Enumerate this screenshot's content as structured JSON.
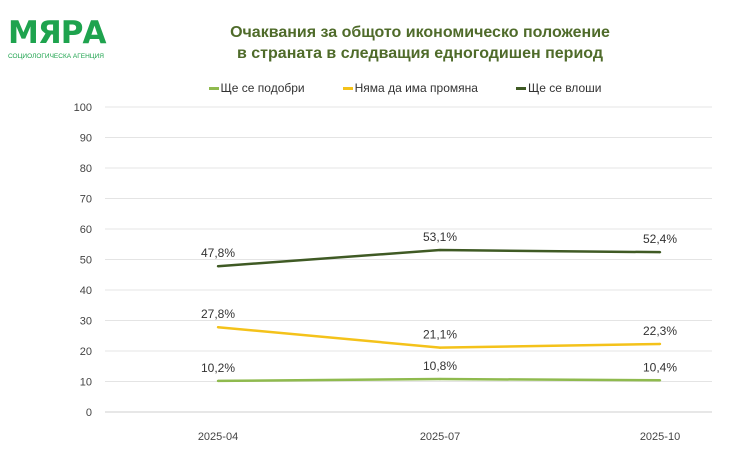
{
  "logo": {
    "main": "МЯРА",
    "sub": "СОЦИОЛОГИЧЕСКА АГЕНЦИЯ"
  },
  "chart_data": {
    "type": "line",
    "title": [
      "Очаквания за общото икономическо положение",
      "в страната в следващия едногодишен период"
    ],
    "categories": [
      "2025-04",
      "2025-07",
      "2025-10"
    ],
    "ylim": [
      0,
      100
    ],
    "yticks": [
      0,
      10,
      20,
      30,
      40,
      50,
      60,
      70,
      80,
      90,
      100
    ],
    "grid": true,
    "legend_position": "top",
    "series": [
      {
        "name": "Ще се подобри",
        "color": "#8fba4e",
        "values": [
          10.2,
          10.8,
          10.4
        ],
        "labels": [
          "10,2%",
          "10,8%",
          "10,4%"
        ]
      },
      {
        "name": "Няма да има промяна",
        "color": "#f4c21a",
        "values": [
          27.8,
          21.1,
          22.3
        ],
        "labels": [
          "27,8%",
          "21,1%",
          "22,3%"
        ]
      },
      {
        "name": "Ще се влоши",
        "color": "#3f5a24",
        "values": [
          47.8,
          53.1,
          52.4
        ],
        "labels": [
          "47,8%",
          "53,1%",
          "52,4%"
        ]
      }
    ]
  }
}
